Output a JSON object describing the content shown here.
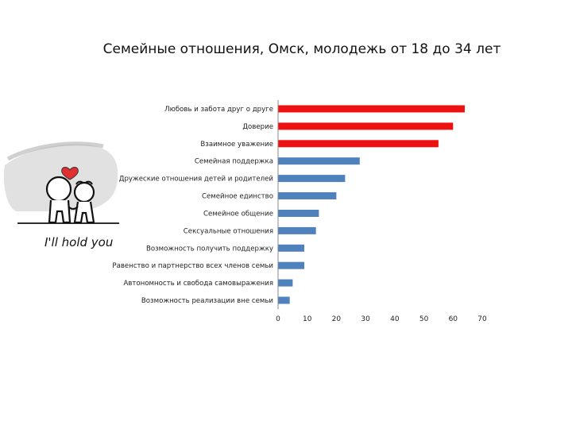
{
  "chart_data": {
    "type": "bar",
    "orientation": "horizontal",
    "title": "Семейные отношения, Омск, молодежь от 18 до 34 лет",
    "categories": [
      "Любовь и забота друг о друге",
      "Доверие",
      "Взаимное уважение",
      "Семейная поддержка",
      "Дружеские отношения детей и родителей",
      "Семейное единство",
      "Семейное общение",
      "Сексуальные отношения",
      "Возможность получить поддержку",
      "Равенство и партнерство всех членов семьи",
      "Автономность и свобода самовыражения",
      "Возможность реализации вне семьи"
    ],
    "values": [
      64,
      60,
      55,
      28,
      23,
      20,
      14,
      13,
      9,
      9,
      5,
      4
    ],
    "bar_colors": [
      "#ee1111",
      "#ee1111",
      "#ee1111",
      "#4f81bd",
      "#4f81bd",
      "#4f81bd",
      "#4f81bd",
      "#4f81bd",
      "#4f81bd",
      "#4f81bd",
      "#4f81bd",
      "#4f81bd"
    ],
    "xticks": [
      0,
      10,
      20,
      30,
      40,
      50,
      60,
      70
    ],
    "xlim": [
      0,
      70
    ],
    "grid": false,
    "legend": "none"
  },
  "illustration": {
    "caption": "I'll hold you",
    "heart_color": "#e03030"
  }
}
